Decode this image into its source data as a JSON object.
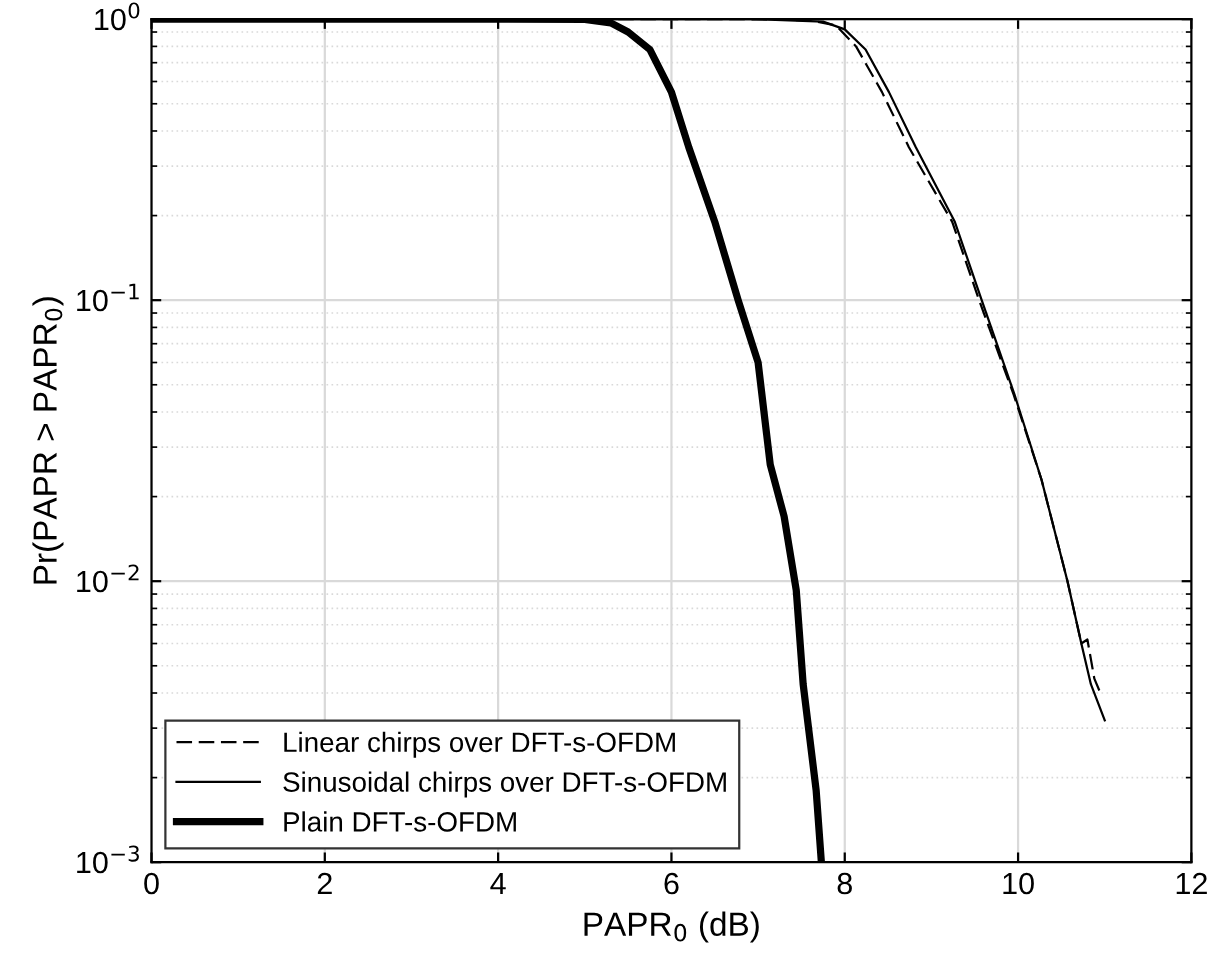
{
  "chart_data": {
    "type": "line",
    "xlabel": "PAPR$_{0}$ (dB)",
    "ylabel": "Pr(PAPR > PAPR$_{0}$)",
    "log": "y",
    "grid": true,
    "legend": "bottom left",
    "xlim": [
      0,
      12
    ],
    "xticks": [
      0,
      2,
      4,
      6,
      8,
      10,
      12
    ],
    "ylim": [
      0.001,
      1
    ],
    "yticks": [
      {
        "value": 0.001,
        "label": "10$^{−3}$"
      },
      {
        "value": 0.01,
        "label": "10$^{−2}$"
      },
      {
        "value": 0.1,
        "label": "10$^{−1}$"
      },
      {
        "value": 1,
        "label": "10$^{0}$"
      }
    ],
    "series": [
      {
        "name": "Linear chirps over DFT-s-OFDM",
        "color": "#000000",
        "line_style": "dashed",
        "x": [
          0,
          6,
          7,
          7.6,
          7.9,
          8.13,
          8.43,
          8.74,
          9.24,
          9.55,
          9.95,
          10.27,
          10.57,
          10.73,
          10.8,
          10.88,
          10.95
        ],
        "values": [
          1,
          1,
          0.999,
          0.99,
          0.95,
          0.8,
          0.55,
          0.35,
          0.19,
          0.1,
          0.046,
          0.023,
          0.01,
          0.006,
          0.0062,
          0.0045,
          0.004
        ]
      },
      {
        "name": "Sinusoidal chirps over DFT-s-OFDM",
        "color": "#000000",
        "line_style": "solid",
        "x": [
          0,
          6,
          6.98,
          7.75,
          8,
          8.24,
          8.51,
          8.82,
          9.27,
          9.58,
          9.96,
          10.27,
          10.57,
          10.73,
          10.84,
          11.0
        ],
        "values": [
          1,
          1,
          1,
          0.98,
          0.92,
          0.78,
          0.55,
          0.35,
          0.19,
          0.1,
          0.046,
          0.023,
          0.01,
          0.006,
          0.0043,
          0.0032
        ]
      },
      {
        "name": "Plain DFT-s-OFDM",
        "color": "#000000",
        "line_style": "solid",
        "x": [
          0,
          4,
          5,
          5.3,
          5.5,
          5.75,
          6,
          6.2,
          6.5,
          6.77,
          7.0,
          7.14,
          7.3,
          7.44,
          7.52,
          7.67,
          7.73
        ],
        "values": [
          1,
          1,
          0.998,
          0.97,
          0.9,
          0.78,
          0.55,
          0.35,
          0.19,
          0.1,
          0.06,
          0.026,
          0.017,
          0.0093,
          0.0043,
          0.0018,
          0.001
        ]
      }
    ]
  }
}
